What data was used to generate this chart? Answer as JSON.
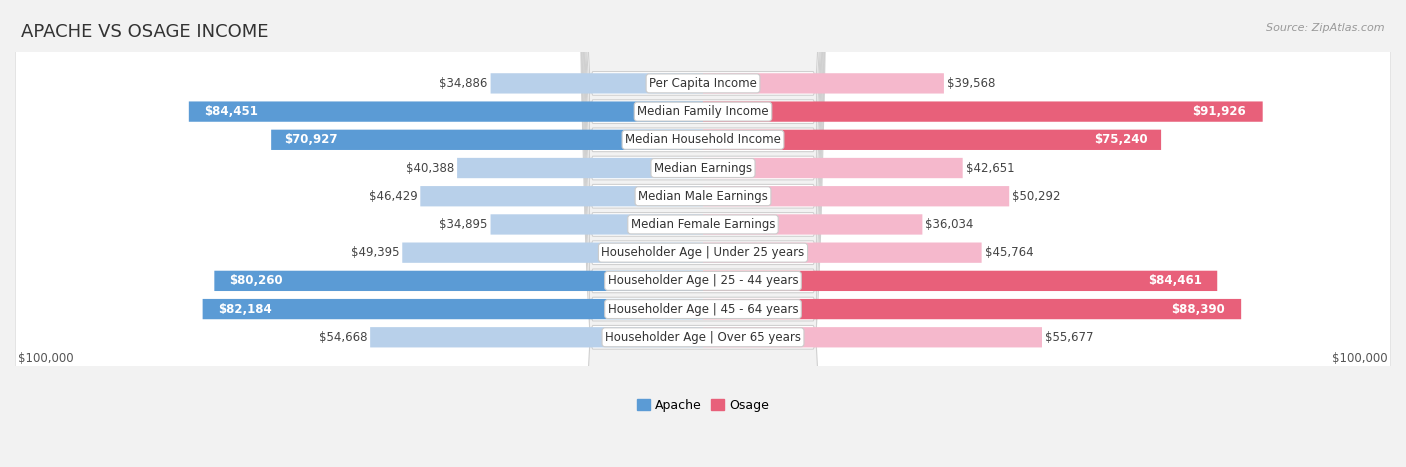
{
  "title": "APACHE VS OSAGE INCOME",
  "source": "Source: ZipAtlas.com",
  "categories": [
    "Per Capita Income",
    "Median Family Income",
    "Median Household Income",
    "Median Earnings",
    "Median Male Earnings",
    "Median Female Earnings",
    "Householder Age | Under 25 years",
    "Householder Age | 25 - 44 years",
    "Householder Age | 45 - 64 years",
    "Householder Age | Over 65 years"
  ],
  "apache_values": [
    34886,
    84451,
    70927,
    40388,
    46429,
    34895,
    49395,
    80260,
    82184,
    54668
  ],
  "osage_values": [
    39568,
    91926,
    75240,
    42651,
    50292,
    36034,
    45764,
    84461,
    88390,
    55677
  ],
  "apache_labels": [
    "$34,886",
    "$84,451",
    "$70,927",
    "$40,388",
    "$46,429",
    "$34,895",
    "$49,395",
    "$80,260",
    "$82,184",
    "$54,668"
  ],
  "osage_labels": [
    "$39,568",
    "$91,926",
    "$75,240",
    "$42,651",
    "$50,292",
    "$36,034",
    "$45,764",
    "$84,461",
    "$88,390",
    "$55,677"
  ],
  "max_value": 100000,
  "apache_color_light": "#b8d0ea",
  "apache_color_dark": "#5b9bd5",
  "osage_color_light": "#f5b8cc",
  "osage_color_dark": "#e8607a",
  "label_inside_threshold": 60000,
  "bg_color": "#f2f2f2",
  "row_bg_color": "#ffffff",
  "row_border_color": "#d0d0d0",
  "title_fontsize": 13,
  "label_fontsize": 8.5,
  "category_fontsize": 8.5,
  "axis_label_fontsize": 8.5,
  "legend_fontsize": 9
}
